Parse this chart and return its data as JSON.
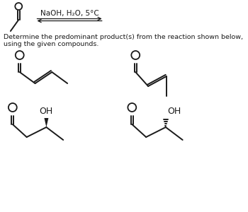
{
  "title_arrow_text": "NaOH, H₂O, 5°C",
  "subtitle": "Determine the predominant product(s) from the reaction shown below, using the given compounds.",
  "bg_color": "#ffffff",
  "line_color": "#1a1a1a",
  "font_size_subtitle": 6.8,
  "font_size_label": 9
}
